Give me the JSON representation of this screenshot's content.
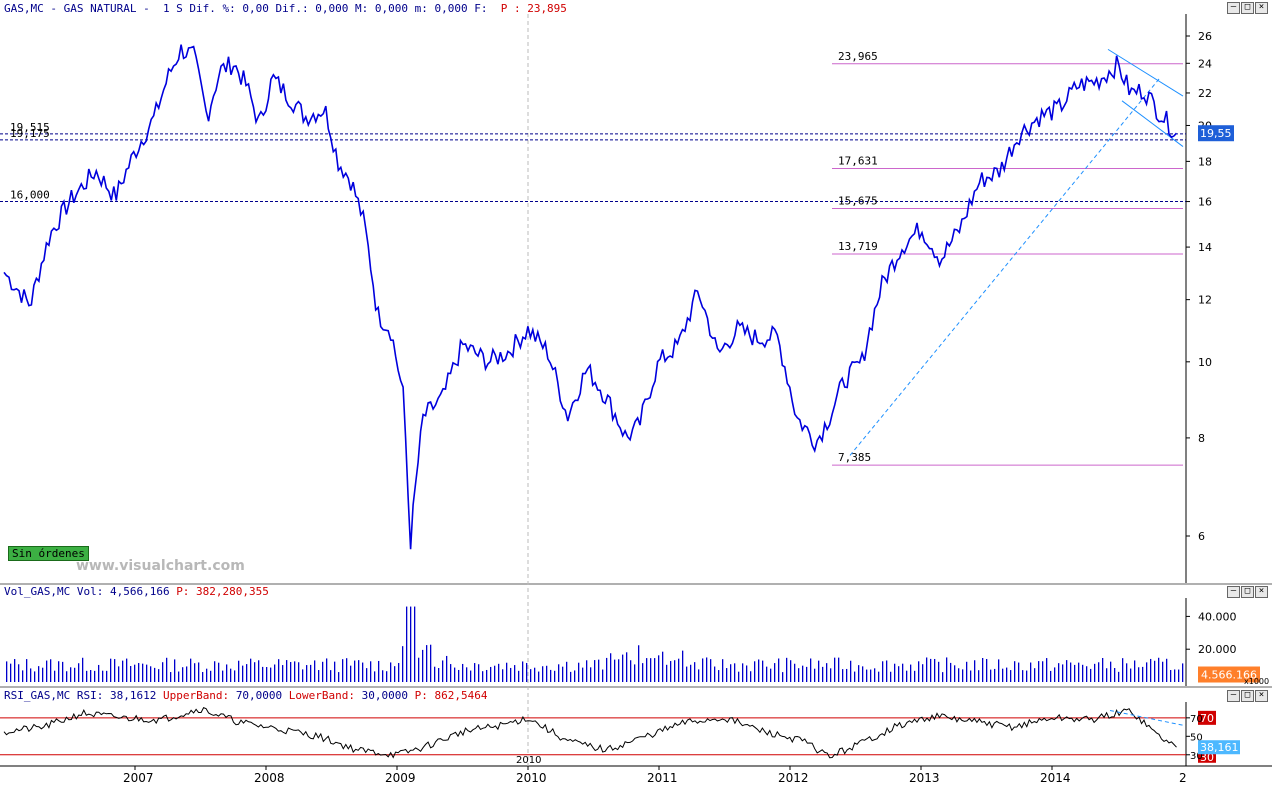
{
  "main_header": {
    "text": "GAS,MC - GAS NATURAL -  1 S Dif. %: 0,00 Dif.: 0,000 M: 0,000 m: 0,000 F:  ",
    "price": "P : 23,895"
  },
  "vol_header": {
    "text": "Vol_GAS,MC Vol: 4,566,166 ",
    "price": "P: 382,280,355"
  },
  "rsi_header": {
    "part1": "RSI_GAS,MC RSI: 38,1612 ",
    "upper": "UpperBand: ",
    "upper_v": "70,0000 ",
    "lower": "LowerBand: ",
    "lower_v": "30,0000 ",
    "price": "P: 862,5464"
  },
  "controls": [
    "—",
    "□",
    "×"
  ],
  "badge": "Sin órdenes",
  "watermark": "www.visualchart.com",
  "colors": {
    "price": "#0000dd",
    "fib": "#cc66cc",
    "support": "#00008b",
    "rsi_band": "#d00000",
    "last_price_bg": "#1e5fd8",
    "vol_bg": "#ff7f2a",
    "rsi_bg": "#4db8ff"
  },
  "chart_data": [
    {
      "type": "line",
      "ylabel": "",
      "y_scale": "log",
      "ylim": [
        5,
        27
      ],
      "yticks": [
        "26",
        "24",
        "22",
        "20",
        "18",
        "16",
        "14",
        "12",
        "10",
        "8",
        "6"
      ],
      "x_ticks": [
        "2007",
        "2008",
        "2009",
        "2010",
        "2011",
        "2012",
        "2013",
        "2014",
        "2"
      ],
      "series": [
        {
          "x": [
            2006.0,
            2006.2,
            2006.35,
            2006.5,
            2006.7,
            2006.85,
            2007.0,
            2007.15,
            2007.25,
            2007.35,
            2007.45,
            2007.55,
            2007.65,
            2007.75,
            2007.85,
            2007.95,
            2008.05,
            2008.15,
            2008.3,
            2008.45,
            2008.55,
            2008.65,
            2008.75,
            2008.85,
            2008.95,
            2009.05,
            2009.1,
            2009.2,
            2009.35,
            2009.5,
            2009.7,
            2009.85,
            2010.0,
            2010.15,
            2010.3,
            2010.45,
            2010.6,
            2010.75,
            2010.85,
            2011.0,
            2011.15,
            2011.3,
            2011.45,
            2011.6,
            2011.75,
            2011.9,
            2012.05,
            2012.2,
            2012.3,
            2012.42,
            2012.55,
            2012.7,
            2012.85,
            2013.0,
            2013.15,
            2013.3,
            2013.45,
            2013.6,
            2013.75,
            2013.9,
            2014.05,
            2014.2,
            2014.35,
            2014.5,
            2014.6,
            2014.7,
            2014.8,
            2014.9,
            2014.95
          ],
          "values": [
            13.0,
            11.8,
            14.5,
            16.0,
            17.5,
            16.2,
            18.5,
            20.5,
            23.0,
            25.0,
            24.5,
            20.5,
            23.5,
            24.0,
            22.5,
            20.0,
            23.0,
            22.0,
            20.5,
            21.0,
            18.0,
            17.0,
            15.0,
            11.5,
            11.0,
            9.0,
            5.8,
            8.5,
            9.0,
            10.5,
            10.0,
            10.3,
            11.0,
            10.3,
            8.5,
            9.8,
            9.0,
            8.0,
            8.3,
            10.0,
            10.5,
            12.3,
            10.2,
            11.0,
            10.7,
            10.8,
            8.5,
            7.9,
            8.5,
            9.5,
            10.0,
            12.5,
            14.0,
            14.8,
            13.5,
            14.8,
            17.0,
            17.5,
            19.5,
            20.5,
            21.0,
            22.5,
            22.8,
            23.9,
            22.0,
            22.2,
            21.0,
            20.0,
            19.55
          ]
        }
      ],
      "levels": [
        {
          "label": "23,965",
          "value": 23.965,
          "kind": "fib"
        },
        {
          "label": "19,515",
          "value": 19.515,
          "kind": "support"
        },
        {
          "label": "19,175",
          "value": 19.175,
          "kind": "support"
        },
        {
          "label": "17,631",
          "value": 17.631,
          "kind": "fib"
        },
        {
          "label": "16,000",
          "value": 16.0,
          "kind": "support"
        },
        {
          "label": "15,675",
          "value": 15.675,
          "kind": "fib"
        },
        {
          "label": "13,719",
          "value": 13.719,
          "kind": "fib"
        },
        {
          "label": "7,385",
          "value": 7.385,
          "kind": "fib"
        }
      ],
      "last_price": "19,55"
    },
    {
      "type": "bar",
      "ylim": [
        0,
        50000
      ],
      "yticks": [
        "40.000",
        "20.000"
      ],
      "unit": "x1000",
      "last_value": "4.566.166"
    },
    {
      "type": "line",
      "ylim": [
        20,
        85
      ],
      "yticks": [
        "70",
        "50",
        "30"
      ],
      "upper_band": 70,
      "lower_band": 30,
      "series": [
        {
          "x": [
            2006.0,
            2006.3,
            2006.6,
            2006.9,
            2007.2,
            2007.5,
            2007.8,
            2008.1,
            2008.4,
            2008.7,
            2009.0,
            2009.2,
            2009.5,
            2009.8,
            2010.0,
            2010.3,
            2010.6,
            2010.9,
            2011.2,
            2011.5,
            2011.8,
            2012.1,
            2012.3,
            2012.5,
            2012.8,
            2013.1,
            2013.4,
            2013.7,
            2014.0,
            2014.3,
            2014.6,
            2014.8,
            2014.95
          ],
          "values": [
            55,
            60,
            75,
            70,
            68,
            80,
            65,
            58,
            50,
            35,
            30,
            38,
            55,
            62,
            70,
            45,
            35,
            50,
            65,
            70,
            55,
            45,
            28,
            40,
            60,
            72,
            66,
            60,
            70,
            68,
            78,
            52,
            38.16
          ]
        }
      ],
      "last_value": "38,161",
      "band_labels": [
        "70",
        "30"
      ]
    }
  ]
}
